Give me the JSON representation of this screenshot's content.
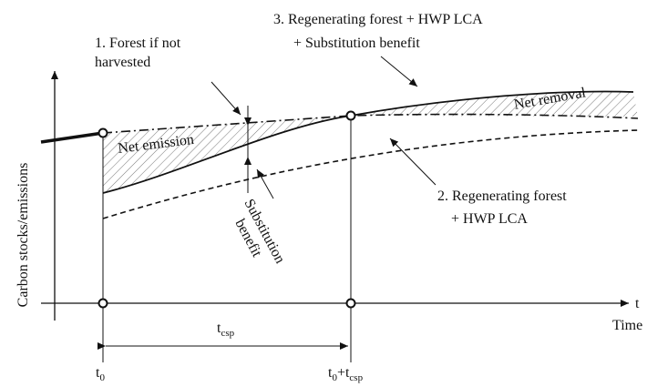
{
  "labels": {
    "forest_not_harvested": [
      "1. Forest if not",
      "harvested"
    ],
    "regenerating_substitution": [
      "3. Regenerating forest + HWP LCA",
      "+ Substitution benefit"
    ],
    "regenerating_hwp": [
      "2. Regenerating forest",
      "+ HWP LCA"
    ],
    "net_emission": "Net emission",
    "net_removal": "Net removal",
    "substitution_benefit": [
      "Substitution",
      "benefit"
    ],
    "y_axis": "Carbon stocks/emissions",
    "x_axis_symbol": "t",
    "x_axis": "Time",
    "t_csp": {
      "main": "t",
      "sub": "csp"
    },
    "t_0": {
      "main": "t",
      "sub": "0"
    },
    "t_0_plus_t_csp": {
      "main": "t",
      "sub": "0",
      "plus": "+t",
      "sub2": "csp"
    }
  }
}
